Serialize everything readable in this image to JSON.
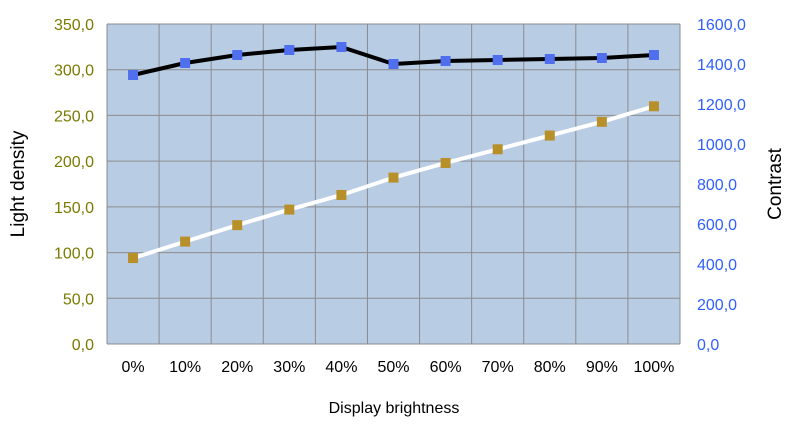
{
  "chart_data": {
    "type": "line",
    "xlabel": "Display brightness",
    "categories": [
      "0%",
      "10%",
      "20%",
      "30%",
      "40%",
      "50%",
      "60%",
      "70%",
      "80%",
      "90%",
      "100%"
    ],
    "y_left": {
      "label": "Light density",
      "ylim": [
        0,
        350
      ],
      "ticks": [
        "0,0",
        "50,0",
        "100,0",
        "150,0",
        "200,0",
        "250,0",
        "300,0",
        "350,0"
      ],
      "tick_values": [
        0,
        50,
        100,
        150,
        200,
        250,
        300,
        350
      ],
      "color": "#7a7a00"
    },
    "y_right": {
      "label": "Contrast",
      "ylim": [
        0,
        1600
      ],
      "ticks": [
        "0,0",
        "200,0",
        "400,0",
        "600,0",
        "800,0",
        "1000,0",
        "1200,0",
        "1400,0",
        "1600,0"
      ],
      "tick_values": [
        0,
        200,
        400,
        600,
        800,
        1000,
        1200,
        1400,
        1600
      ],
      "color": "#2f5fff"
    },
    "series": [
      {
        "axis": "right",
        "values": [
          1345,
          1405,
          1445,
          1470,
          1485,
          1400,
          1415,
          1420,
          1425,
          1430,
          1445
        ],
        "line_color": "#000000",
        "marker_color": "#4f6fef"
      },
      {
        "axis": "left",
        "values": [
          94,
          112,
          130,
          147,
          163,
          182,
          198,
          213,
          228,
          243,
          260
        ],
        "line_color": "#ffffff",
        "marker_color": "#b8902a"
      }
    ],
    "grid": true,
    "plot_background": "#b8cce4"
  }
}
